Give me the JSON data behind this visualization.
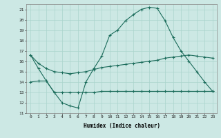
{
  "xlabel": "Humidex (Indice chaleur)",
  "bg_color": "#cce8e4",
  "grid_color": "#aad4cc",
  "line_color": "#1a6b5a",
  "xlim": [
    -0.5,
    23.5
  ],
  "ylim": [
    11,
    21.5
  ],
  "yticks": [
    11,
    12,
    13,
    14,
    15,
    16,
    17,
    18,
    19,
    20,
    21
  ],
  "xticks": [
    0,
    1,
    2,
    3,
    4,
    5,
    6,
    7,
    8,
    9,
    10,
    11,
    12,
    13,
    14,
    15,
    16,
    17,
    18,
    19,
    20,
    21,
    22,
    23
  ],
  "curve1_x": [
    0,
    1,
    2,
    3,
    4,
    5,
    6,
    7,
    8,
    9,
    10,
    11,
    12,
    13,
    14,
    15,
    16,
    17,
    18,
    19,
    20,
    21,
    22,
    23
  ],
  "curve1_y": [
    16.6,
    15.3,
    14.1,
    13.0,
    12.0,
    11.7,
    11.5,
    14.0,
    15.3,
    16.5,
    18.5,
    19.0,
    19.9,
    20.5,
    21.0,
    21.2,
    21.1,
    19.9,
    18.3,
    17.0,
    16.0,
    15.0,
    14.0,
    13.1
  ],
  "curve2_x": [
    0,
    1,
    2,
    3,
    4,
    5,
    6,
    7,
    8,
    9,
    10,
    11,
    12,
    13,
    14,
    15,
    16,
    17,
    18,
    19,
    20,
    21,
    22,
    23
  ],
  "curve2_y": [
    16.6,
    15.8,
    15.3,
    15.0,
    14.9,
    14.8,
    14.9,
    15.0,
    15.2,
    15.4,
    15.5,
    15.6,
    15.7,
    15.8,
    15.9,
    16.0,
    16.1,
    16.3,
    16.4,
    16.5,
    16.6,
    16.5,
    16.4,
    16.3
  ],
  "curve3_x": [
    0,
    1,
    2,
    3,
    4,
    5,
    6,
    7,
    8,
    9,
    10,
    11,
    12,
    13,
    14,
    15,
    16,
    17,
    18,
    19,
    20,
    21,
    22,
    23
  ],
  "curve3_y": [
    14.0,
    14.1,
    14.1,
    13.0,
    13.0,
    13.0,
    13.0,
    13.0,
    13.0,
    13.1,
    13.1,
    13.1,
    13.1,
    13.1,
    13.1,
    13.1,
    13.1,
    13.1,
    13.1,
    13.1,
    13.1,
    13.1,
    13.1,
    13.1
  ]
}
